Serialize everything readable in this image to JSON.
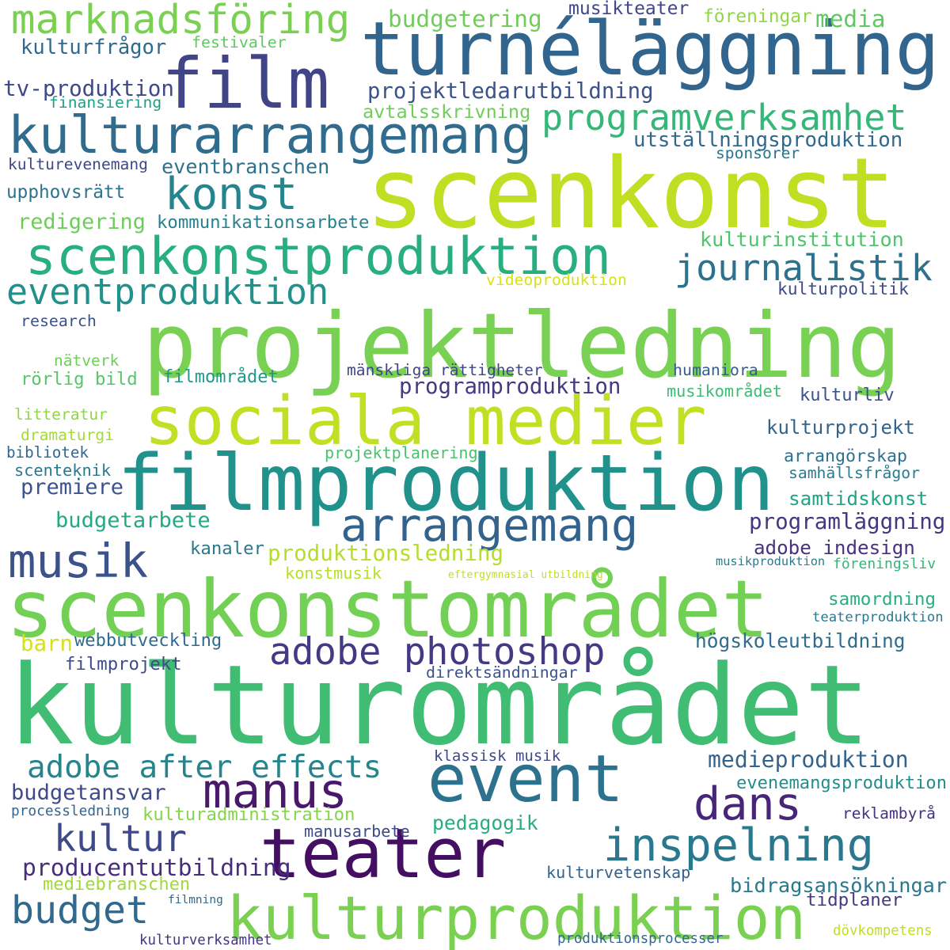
{
  "words": [
    {
      "text": "kulturområdet",
      "color": "#40bd73"
    },
    {
      "text": "scenkonst",
      "color": "#c2de22"
    },
    {
      "text": "projektledning",
      "color": "#78d152"
    },
    {
      "text": "filmproduktion",
      "color": "#21918c"
    },
    {
      "text": "turnéläggning",
      "color": "#31658e"
    },
    {
      "text": "scenkonstområdet",
      "color": "#72d054"
    },
    {
      "text": "film",
      "color": "#414487"
    },
    {
      "text": "sociala medier",
      "color": "#c2df23"
    },
    {
      "text": "teater",
      "color": "#440f62"
    },
    {
      "text": "kulturproduktion",
      "color": "#7ad151"
    },
    {
      "text": "event",
      "color": "#2c728e"
    },
    {
      "text": "scenkonstproduktion",
      "color": "#29af7f"
    },
    {
      "text": "kulturarrangemang",
      "color": "#2f6c8e"
    },
    {
      "text": "musik",
      "color": "#3b528b"
    },
    {
      "text": "marknadsföring",
      "color": "#7ad151"
    },
    {
      "text": "arrangemang",
      "color": "#33638d"
    },
    {
      "text": "manus",
      "color": "#48186a"
    },
    {
      "text": "konst",
      "color": "#25848e"
    },
    {
      "text": "programverksamhet",
      "color": "#35b779"
    },
    {
      "text": "adobe photoshop",
      "color": "#443983"
    },
    {
      "text": "inspelning",
      "color": "#2a788e"
    },
    {
      "text": "eventproduktion",
      "color": "#21918c"
    },
    {
      "text": "journalistik",
      "color": "#2c728e"
    },
    {
      "text": "adobe after effects",
      "color": "#25858e"
    },
    {
      "text": "dans",
      "color": "#482677"
    },
    {
      "text": "kultur",
      "color": "#3e4989"
    },
    {
      "text": "budget",
      "color": "#31688e"
    },
    {
      "text": "produktionsledning",
      "color": "#b5de2b"
    },
    {
      "text": "producentutbildning",
      "color": "#472d7b"
    },
    {
      "text": "programproduktion",
      "color": "#443983"
    },
    {
      "text": "utställningsproduktion",
      "color": "#31688e"
    },
    {
      "text": "projektledarutbildning",
      "color": "#3b528b"
    },
    {
      "text": "medieproduktion",
      "color": "#33638d"
    },
    {
      "text": "budgetansvar",
      "color": "#3e4a89"
    },
    {
      "text": "programläggning",
      "color": "#453781"
    },
    {
      "text": "adobe indesign",
      "color": "#46337f"
    },
    {
      "text": "högskoleutbildning",
      "color": "#2f6c8e"
    },
    {
      "text": "bidragsansökningar",
      "color": "#2a788e"
    },
    {
      "text": "kulturprojekt",
      "color": "#32648e"
    },
    {
      "text": "arrangörskap",
      "color": "#2d718e"
    },
    {
      "text": "webbutveckling",
      "color": "#2f6b8e"
    },
    {
      "text": "evenemangsproduktion",
      "color": "#228d8d"
    },
    {
      "text": "budgetering",
      "color": "#6ece58"
    },
    {
      "text": "kulturfrågor",
      "color": "#30698e"
    },
    {
      "text": "tv-produktion",
      "color": "#3f4889"
    },
    {
      "text": "föreningar",
      "color": "#8fd744"
    },
    {
      "text": "media",
      "color": "#5ec962"
    },
    {
      "text": "kulturinstitution",
      "color": "#50c46a"
    },
    {
      "text": "kulturpolitik",
      "color": "#3e4a89"
    },
    {
      "text": "humaniora",
      "color": "#365c8d"
    },
    {
      "text": "kulturliv",
      "color": "#3b518b"
    },
    {
      "text": "upphovsrätt",
      "color": "#2c738e"
    },
    {
      "text": "redigering",
      "color": "#6ccd5a"
    },
    {
      "text": "eventbranschen",
      "color": "#2c728e"
    },
    {
      "text": "premiere",
      "color": "#3a548c"
    },
    {
      "text": "budgetarbete",
      "color": "#23a983"
    },
    {
      "text": "samhällsfrågor",
      "color": "#287c8e"
    },
    {
      "text": "samtidskonst",
      "color": "#20a486"
    },
    {
      "text": "kulturvetenskap",
      "color": "#34618d"
    },
    {
      "text": "tidplaner",
      "color": "#443983"
    },
    {
      "text": "samordning",
      "color": "#29af7f"
    },
    {
      "text": "föreningsliv",
      "color": "#35b779"
    },
    {
      "text": "pedagogik",
      "color": "#27ad81"
    },
    {
      "text": "kulturadministration",
      "color": "#86d549"
    },
    {
      "text": "mediebranschen",
      "color": "#a0da39"
    },
    {
      "text": "barn",
      "color": "#d2e21b"
    },
    {
      "text": "filmprojekt",
      "color": "#3e4c8a"
    },
    {
      "text": "kanaler",
      "color": "#2a788e"
    },
    {
      "text": "musikteater",
      "color": "#404688"
    },
    {
      "text": "festivaler",
      "color": "#5ec962"
    },
    {
      "text": "finansiering",
      "color": "#1fa188"
    },
    {
      "text": "avtalsskrivning",
      "color": "#6ece58"
    },
    {
      "text": "kulturevenemang",
      "color": "#404688"
    },
    {
      "text": "sponsorer",
      "color": "#2b758e"
    },
    {
      "text": "kommunikationsarbete",
      "color": "#26828e"
    },
    {
      "text": "videoproduktion",
      "color": "#d8e219"
    },
    {
      "text": "research",
      "color": "#3b518b"
    },
    {
      "text": "nätverk",
      "color": "#6ece58"
    },
    {
      "text": "rörlig bild",
      "color": "#56c667"
    },
    {
      "text": "filmområdet",
      "color": "#1f988b"
    },
    {
      "text": "mänskliga rättigheter",
      "color": "#404688"
    },
    {
      "text": "musikområdet",
      "color": "#3dbc74"
    },
    {
      "text": "litteratur",
      "color": "#8fd744"
    },
    {
      "text": "dramaturgi",
      "color": "#a5db36"
    },
    {
      "text": "bibliotek",
      "color": "#31688e"
    },
    {
      "text": "scenteknik",
      "color": "#29798e"
    },
    {
      "text": "projektplanering",
      "color": "#4ac16d"
    },
    {
      "text": "konstmusik",
      "color": "#b8de29"
    },
    {
      "text": "eftergymnasial utbildning",
      "color": "#bddf26"
    },
    {
      "text": "musikproduktion",
      "color": "#287c8e"
    },
    {
      "text": "teaterproduktion",
      "color": "#2a788e"
    },
    {
      "text": "direktsändningar",
      "color": "#3b528b"
    },
    {
      "text": "klassisk musik",
      "color": "#3f4889"
    },
    {
      "text": "processledning",
      "color": "#32648e"
    },
    {
      "text": "manusarbete",
      "color": "#3e4a89"
    },
    {
      "text": "reklambyrå",
      "color": "#46337f"
    },
    {
      "text": "filmning",
      "color": "#31688e"
    },
    {
      "text": "dövkompetens",
      "color": "#c0df25"
    },
    {
      "text": "kulturverksamhet",
      "color": "#463480"
    },
    {
      "text": "produktionsprocesser",
      "color": "#31688e"
    }
  ]
}
